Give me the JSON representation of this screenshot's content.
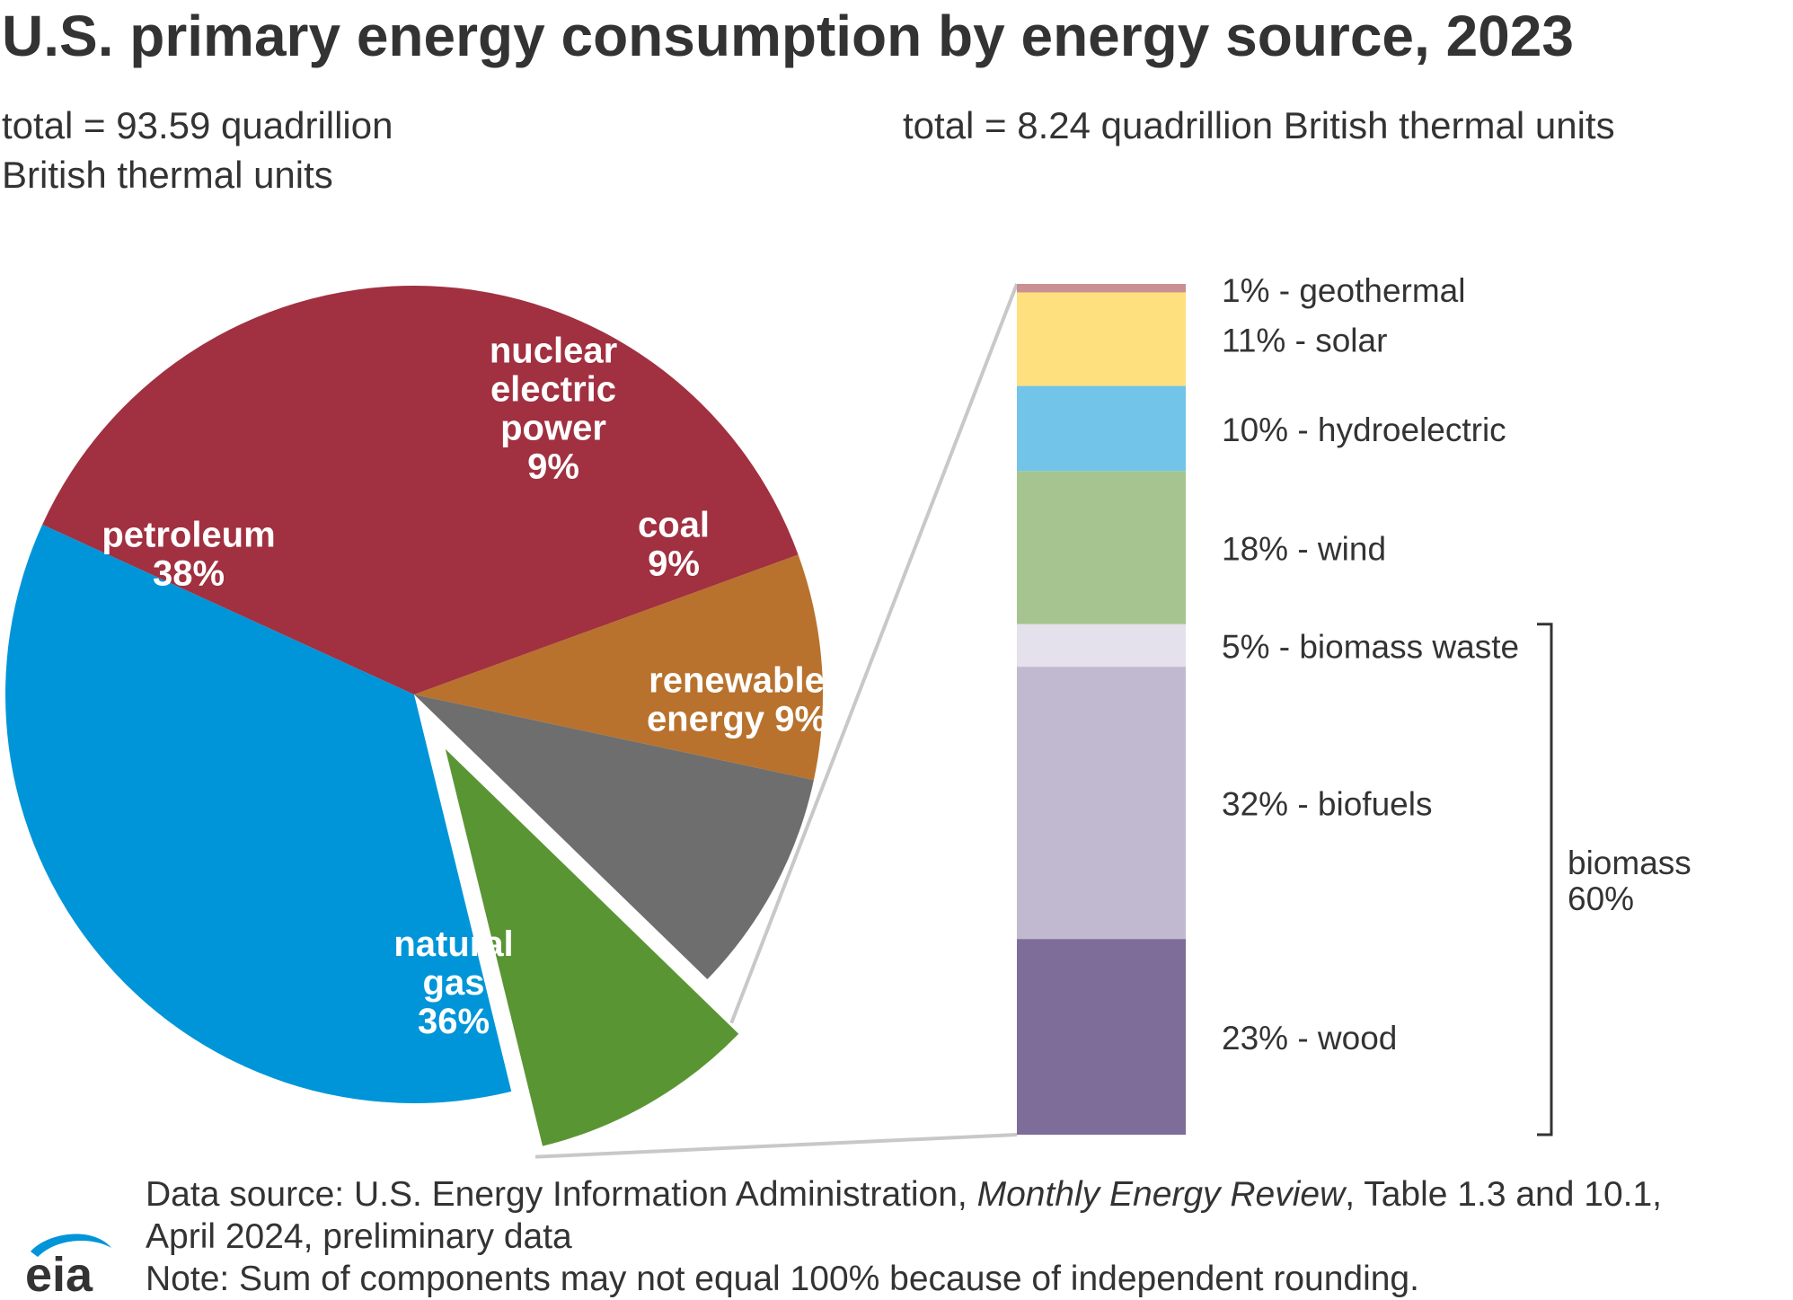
{
  "title": "U.S. primary energy consumption by energy source, 2023",
  "subtitle_left": "total = 93.59 quadrillion British thermal units",
  "subtitle_right": "total = 8.24 quadrillion British thermal units",
  "chart_data": [
    {
      "type": "pie",
      "slices": [
        {
          "label": [
            "nuclear",
            "electric",
            "power",
            "9%"
          ],
          "value": 9,
          "color": "#b8722d"
        },
        {
          "label": [
            "coal",
            "9%"
          ],
          "value": 9,
          "color": "#6e6e6e"
        },
        {
          "label": [
            "renewable",
            "energy 9%"
          ],
          "value": 9,
          "color": "#5a9533",
          "exploded": true
        },
        {
          "label": [
            "natural",
            "gas",
            "36%"
          ],
          "value": 36,
          "color": "#0095d8"
        },
        {
          "label": [
            "petroleum",
            "38%"
          ],
          "value": 38,
          "color": "#a13040"
        }
      ]
    },
    {
      "type": "bar",
      "stacked": true,
      "segments": [
        {
          "label": "1% - geothermal",
          "value": 1,
          "color": "#c98f91"
        },
        {
          "label": "11% - solar",
          "value": 11,
          "color": "#ffe07e"
        },
        {
          "label": "10% - hydroelectric",
          "value": 10,
          "color": "#72c4e8"
        },
        {
          "label": "18% - wind",
          "value": 18,
          "color": "#a6c48f"
        },
        {
          "label": "5% - biomass waste",
          "value": 5,
          "color": "#e4e1ec"
        },
        {
          "label": "32% - biofuels",
          "value": 32,
          "color": "#c1b9d0"
        },
        {
          "label": "23% - wood",
          "value": 23,
          "color": "#7e6d99"
        }
      ],
      "group": {
        "label": [
          "biomass",
          "60%"
        ],
        "value": 60
      }
    }
  ],
  "footer": {
    "source_prefix": "Data source: U.S. Energy Information Administration, ",
    "source_italic": "Monthly Energy Review",
    "source_suffix": ", Table 1.3 and 10.1,",
    "source_line2": "April 2024, preliminary data",
    "note": "Note: Sum of components may not equal 100% because of independent rounding."
  },
  "logo_text": "eia"
}
